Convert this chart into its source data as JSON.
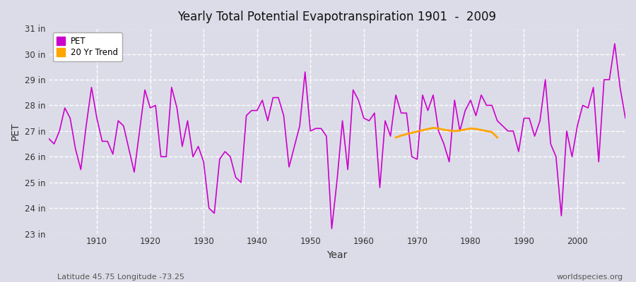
{
  "title": "Yearly Total Potential Evapotranspiration 1901  -  2009",
  "xlabel": "Year",
  "ylabel": "PET",
  "subtitle_left": "Latitude 45.75 Longitude -73.25",
  "subtitle_right": "worldspecies.org",
  "pet_color": "#CC00CC",
  "trend_color": "#FFA500",
  "bg_color": "#DCDCE8",
  "plot_bg": "#DCDCE8",
  "years": [
    1901,
    1902,
    1903,
    1904,
    1905,
    1906,
    1907,
    1908,
    1909,
    1910,
    1911,
    1912,
    1913,
    1914,
    1915,
    1916,
    1917,
    1918,
    1919,
    1920,
    1921,
    1922,
    1923,
    1924,
    1925,
    1926,
    1927,
    1928,
    1929,
    1930,
    1931,
    1932,
    1933,
    1934,
    1935,
    1936,
    1937,
    1938,
    1939,
    1940,
    1941,
    1942,
    1943,
    1944,
    1945,
    1946,
    1947,
    1948,
    1949,
    1950,
    1951,
    1952,
    1953,
    1954,
    1955,
    1956,
    1957,
    1958,
    1959,
    1960,
    1961,
    1962,
    1963,
    1964,
    1965,
    1966,
    1967,
    1968,
    1969,
    1970,
    1971,
    1972,
    1973,
    1974,
    1975,
    1976,
    1977,
    1978,
    1979,
    1980,
    1981,
    1982,
    1983,
    1984,
    1985,
    1986,
    1987,
    1988,
    1989,
    1990,
    1991,
    1992,
    1993,
    1994,
    1995,
    1996,
    1997,
    1998,
    1999,
    2000,
    2001,
    2002,
    2003,
    2004,
    2005,
    2006,
    2007,
    2008,
    2009
  ],
  "pet_values": [
    26.7,
    26.5,
    27.0,
    27.9,
    27.5,
    26.3,
    25.5,
    27.2,
    28.7,
    27.5,
    26.6,
    26.6,
    26.1,
    27.4,
    27.2,
    26.3,
    25.4,
    27.0,
    28.6,
    27.9,
    28.0,
    26.0,
    26.0,
    28.7,
    27.9,
    26.4,
    27.4,
    26.0,
    26.4,
    25.8,
    24.0,
    23.8,
    25.9,
    26.2,
    26.0,
    25.2,
    25.0,
    27.6,
    27.8,
    27.8,
    28.2,
    27.4,
    28.3,
    28.3,
    27.6,
    25.6,
    26.4,
    27.2,
    29.3,
    27.0,
    27.1,
    27.1,
    26.8,
    23.2,
    25.1,
    27.4,
    25.5,
    28.6,
    28.2,
    27.5,
    27.4,
    27.7,
    24.8,
    27.4,
    26.8,
    28.4,
    27.7,
    27.7,
    26.0,
    25.9,
    28.4,
    27.8,
    28.4,
    27.0,
    26.5,
    25.8,
    28.2,
    27.0,
    27.8,
    28.2,
    27.6,
    28.4,
    28.0,
    28.0,
    27.4,
    27.2,
    27.0,
    27.0,
    26.2,
    27.5,
    27.5,
    26.8,
    27.4,
    29.0,
    26.5,
    26.0,
    23.7,
    27.0,
    26.0,
    27.2,
    28.0,
    27.9,
    28.7,
    25.8,
    29.0,
    29.0,
    30.4,
    28.7,
    27.5
  ],
  "trend_years": [
    1966,
    1967,
    1968,
    1969,
    1970,
    1971,
    1972,
    1973,
    1974,
    1975,
    1976,
    1977,
    1978,
    1979,
    1980,
    1981,
    1982,
    1983,
    1984,
    1985
  ],
  "trend_values": [
    26.75,
    26.82,
    26.88,
    26.93,
    26.98,
    27.03,
    27.08,
    27.12,
    27.1,
    27.05,
    27.02,
    27.0,
    27.02,
    27.06,
    27.1,
    27.08,
    27.04,
    27.0,
    26.96,
    26.75
  ],
  "ylim": [
    23.0,
    31.0
  ],
  "yticks": [
    23,
    24,
    25,
    26,
    27,
    28,
    29,
    30,
    31
  ],
  "ytick_labels": [
    "23 in",
    "24 in",
    "25 in",
    "26 in",
    "27 in",
    "28 in",
    "29 in",
    "30 in",
    "31 in"
  ],
  "xlim": [
    1901,
    2009
  ],
  "xticks": [
    1910,
    1920,
    1930,
    1940,
    1950,
    1960,
    1970,
    1980,
    1990,
    2000
  ]
}
